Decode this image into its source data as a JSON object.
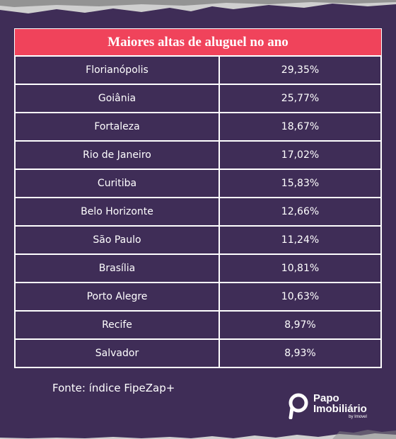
{
  "table": {
    "title": "Maiores altas de aluguel no ano",
    "rows": [
      {
        "city": "Florianópolis",
        "value": "29,35%"
      },
      {
        "city": "Goiânia",
        "value": "25,77%"
      },
      {
        "city": "Fortaleza",
        "value": "18,67%"
      },
      {
        "city": "Rio de Janeiro",
        "value": "17,02%"
      },
      {
        "city": "Curitiba",
        "value": "15,83%"
      },
      {
        "city": "Belo Horizonte",
        "value": "12,66%"
      },
      {
        "city": "São Paulo",
        "value": "11,24%"
      },
      {
        "city": "Brasília",
        "value": "10,81%"
      },
      {
        "city": "Porto Alegre",
        "value": "10,63%"
      },
      {
        "city": "Recife",
        "value": "8,97%"
      },
      {
        "city": "Salvador",
        "value": "8,93%"
      }
    ]
  },
  "source": "Fonte: índice FipeZap+",
  "logo": {
    "line1": "Papo",
    "line2": "Imobiliário",
    "line3": "by Imovel",
    "icon": "papo-imobiliario-logo-icon"
  },
  "colors": {
    "background": "#3f2d57",
    "title_bar": "#f0435b",
    "grid": "#ffffff",
    "torn_paper": "#d9d9d9"
  }
}
